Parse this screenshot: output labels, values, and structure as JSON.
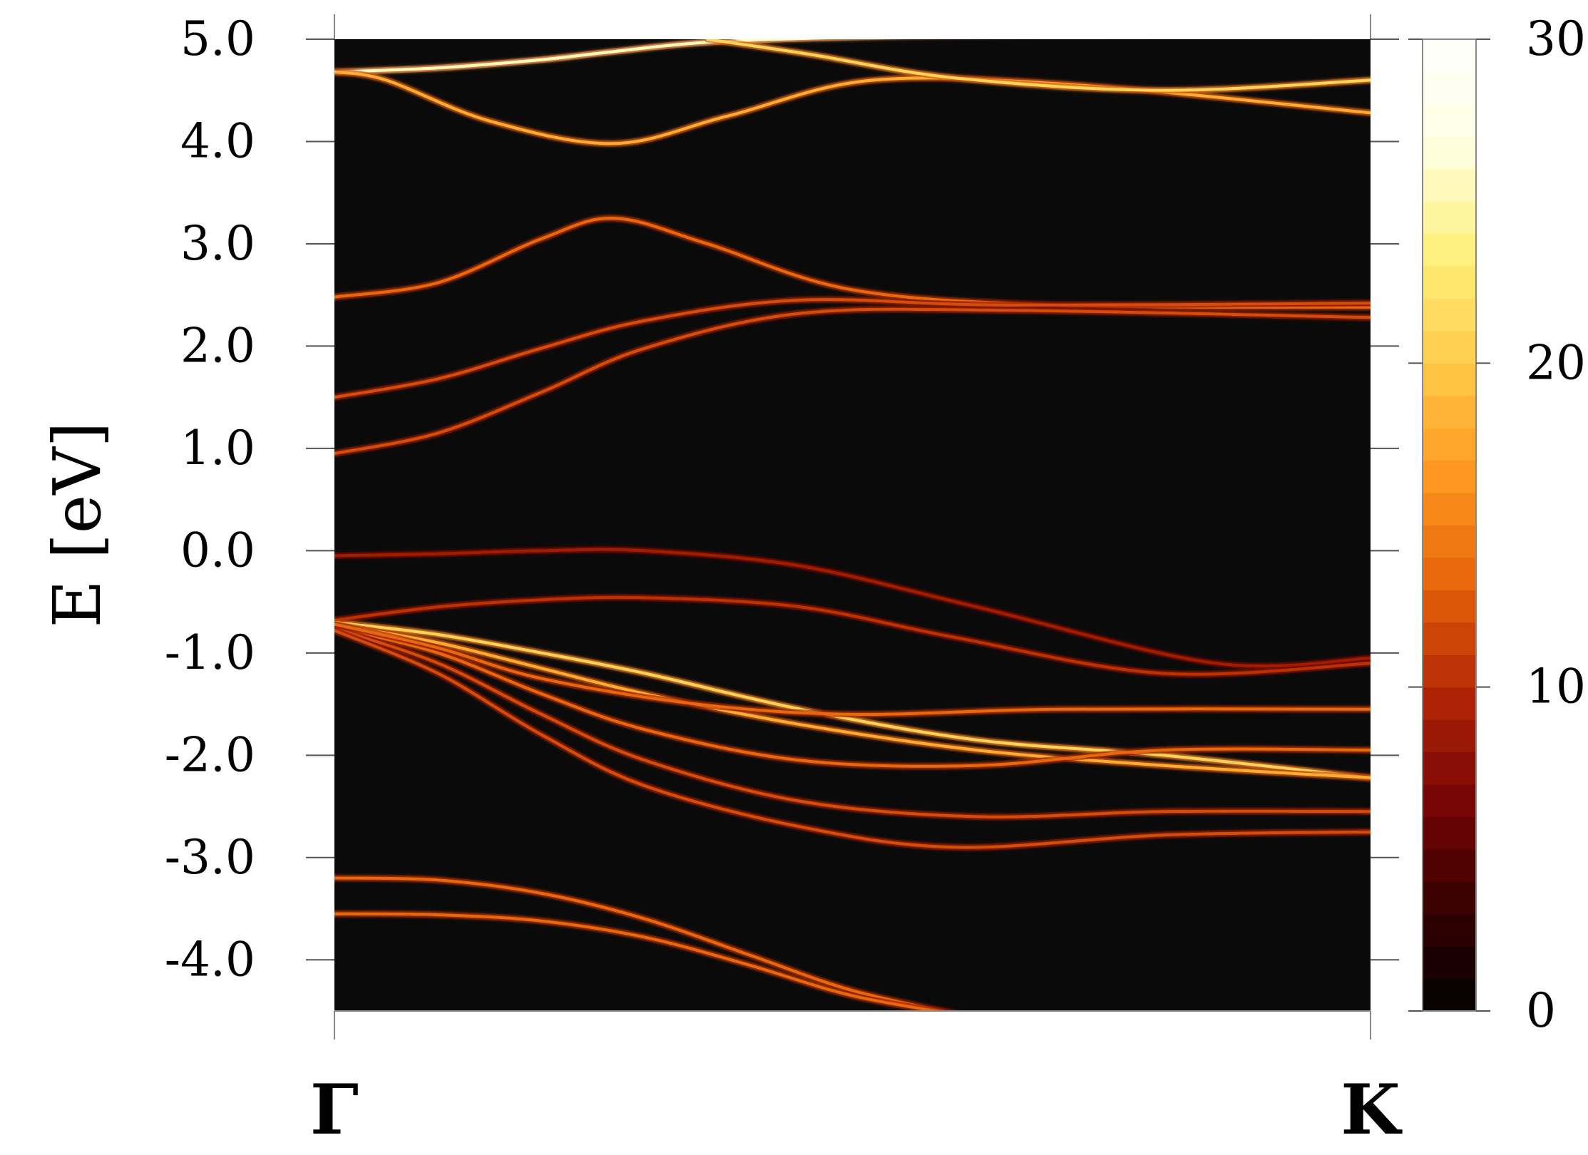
{
  "chart_data": {
    "type": "heatmap",
    "title": "",
    "xlabel": "",
    "ylabel": "E [eV]",
    "x": {
      "path": [
        "Γ",
        "K"
      ],
      "range": [
        0,
        1
      ]
    },
    "ylim": [
      -4.5,
      5.0
    ],
    "y_ticks": [
      "5.0",
      "4.0",
      "3.0",
      "2.0",
      "1.0",
      "0.0",
      "-1.0",
      "-2.0",
      "-3.0",
      "-4.0"
    ],
    "y_tick_values": [
      5.0,
      4.0,
      3.0,
      2.0,
      1.0,
      0.0,
      -1.0,
      -2.0,
      -3.0,
      -4.0
    ],
    "colorbar": {
      "range": [
        0,
        30
      ],
      "ticks": [
        "30",
        "20",
        "10",
        "0"
      ],
      "tick_values": [
        30,
        20,
        10,
        0
      ],
      "colormap": [
        "#000000",
        "#3a0000",
        "#7a0505",
        "#b52a05",
        "#e8650a",
        "#ff9a20",
        "#ffca4a",
        "#fff07a",
        "#ffffe0",
        "#ffffff"
      ]
    },
    "background_color": "#0a0a0a",
    "grid": false,
    "bands": [
      {
        "name": "",
        "k": [
          0,
          0.1,
          0.2,
          0.27,
          0.36,
          0.5,
          0.7,
          1.0
        ],
        "E": [
          4.68,
          4.72,
          4.8,
          4.88,
          4.97,
          5.02,
          5.05,
          5.05
        ],
        "intensity": 0.85
      },
      {
        "name": "",
        "k": [
          0,
          0.05,
          0.15,
          0.27,
          0.38,
          0.52,
          0.72,
          1.0
        ],
        "E": [
          4.68,
          4.6,
          4.2,
          3.98,
          4.25,
          4.6,
          4.55,
          4.28
        ],
        "intensity": 0.6
      },
      {
        "name": "",
        "k": [
          0.36,
          0.46,
          0.6,
          0.8,
          1.0
        ],
        "E": [
          5.0,
          4.85,
          4.62,
          4.5,
          4.6
        ],
        "intensity": 0.7
      },
      {
        "name": "",
        "k": [
          0,
          0.1,
          0.2,
          0.27,
          0.36,
          0.5,
          0.7,
          1.0
        ],
        "E": [
          2.48,
          2.62,
          3.05,
          3.25,
          3.0,
          2.55,
          2.4,
          2.38
        ],
        "intensity": 0.45
      },
      {
        "name": "",
        "k": [
          0,
          0.1,
          0.2,
          0.3,
          0.45,
          0.65,
          1.0
        ],
        "E": [
          1.5,
          1.68,
          1.98,
          2.25,
          2.45,
          2.4,
          2.42
        ],
        "intensity": 0.4
      },
      {
        "name": "",
        "k": [
          0,
          0.1,
          0.2,
          0.3,
          0.45,
          0.65,
          1.0
        ],
        "E": [
          0.95,
          1.15,
          1.55,
          1.98,
          2.32,
          2.35,
          2.28
        ],
        "intensity": 0.4
      },
      {
        "name": "",
        "k": [
          0,
          0.1,
          0.2,
          0.3,
          0.45,
          0.62,
          0.85,
          1.0
        ],
        "E": [
          -0.05,
          -0.03,
          0.0,
          0.0,
          -0.15,
          -0.55,
          -1.1,
          -1.05
        ],
        "intensity": 0.3
      },
      {
        "name": "",
        "k": [
          0,
          0.1,
          0.2,
          0.3,
          0.45,
          0.6,
          0.8,
          1.0
        ],
        "E": [
          -0.68,
          -0.55,
          -0.48,
          -0.46,
          -0.55,
          -0.85,
          -1.2,
          -1.1
        ],
        "intensity": 0.35
      },
      {
        "name": "",
        "k": [
          0,
          0.1,
          0.2,
          0.3,
          0.45,
          0.62,
          0.8,
          1.0
        ],
        "E": [
          -0.7,
          -0.82,
          -1.0,
          -1.2,
          -1.55,
          -1.85,
          -2.0,
          -2.22
        ],
        "intensity": 0.7
      },
      {
        "name": "",
        "k": [
          0,
          0.1,
          0.2,
          0.3,
          0.45,
          0.62,
          0.8,
          1.0
        ],
        "E": [
          -0.72,
          -0.9,
          -1.15,
          -1.4,
          -1.7,
          -1.95,
          -2.1,
          -2.22
        ],
        "intensity": 0.6
      },
      {
        "name": "",
        "k": [
          0,
          0.1,
          0.2,
          0.3,
          0.45,
          0.62,
          0.8,
          1.0
        ],
        "E": [
          -0.75,
          -1.0,
          -1.4,
          -1.75,
          -2.05,
          -2.1,
          -1.95,
          -1.95
        ],
        "intensity": 0.45
      },
      {
        "name": "",
        "k": [
          0,
          0.1,
          0.2,
          0.3,
          0.45,
          0.62,
          0.8,
          1.0
        ],
        "E": [
          -0.76,
          -1.1,
          -1.6,
          -2.05,
          -2.45,
          -2.6,
          -2.55,
          -2.55
        ],
        "intensity": 0.4
      },
      {
        "name": "",
        "k": [
          0,
          0.1,
          0.2,
          0.3,
          0.45,
          0.6,
          0.8,
          1.0
        ],
        "E": [
          -0.78,
          -1.2,
          -1.8,
          -2.3,
          -2.7,
          -2.9,
          -2.78,
          -2.75
        ],
        "intensity": 0.4
      },
      {
        "name": "",
        "k": [
          0,
          0.1,
          0.2,
          0.35,
          0.5,
          0.7,
          1.0
        ],
        "E": [
          -0.72,
          -0.95,
          -1.25,
          -1.5,
          -1.6,
          -1.55,
          -1.55
        ],
        "intensity": 0.45
      },
      {
        "name": "",
        "k": [
          0,
          0.1,
          0.2,
          0.3,
          0.4,
          0.5,
          0.61
        ],
        "E": [
          -3.2,
          -3.22,
          -3.35,
          -3.6,
          -3.95,
          -4.3,
          -4.55
        ],
        "intensity": 0.45
      },
      {
        "name": "",
        "k": [
          0,
          0.1,
          0.2,
          0.3,
          0.4,
          0.5,
          0.61
        ],
        "E": [
          -3.55,
          -3.56,
          -3.62,
          -3.78,
          -4.05,
          -4.35,
          -4.55
        ],
        "intensity": 0.45
      }
    ]
  }
}
